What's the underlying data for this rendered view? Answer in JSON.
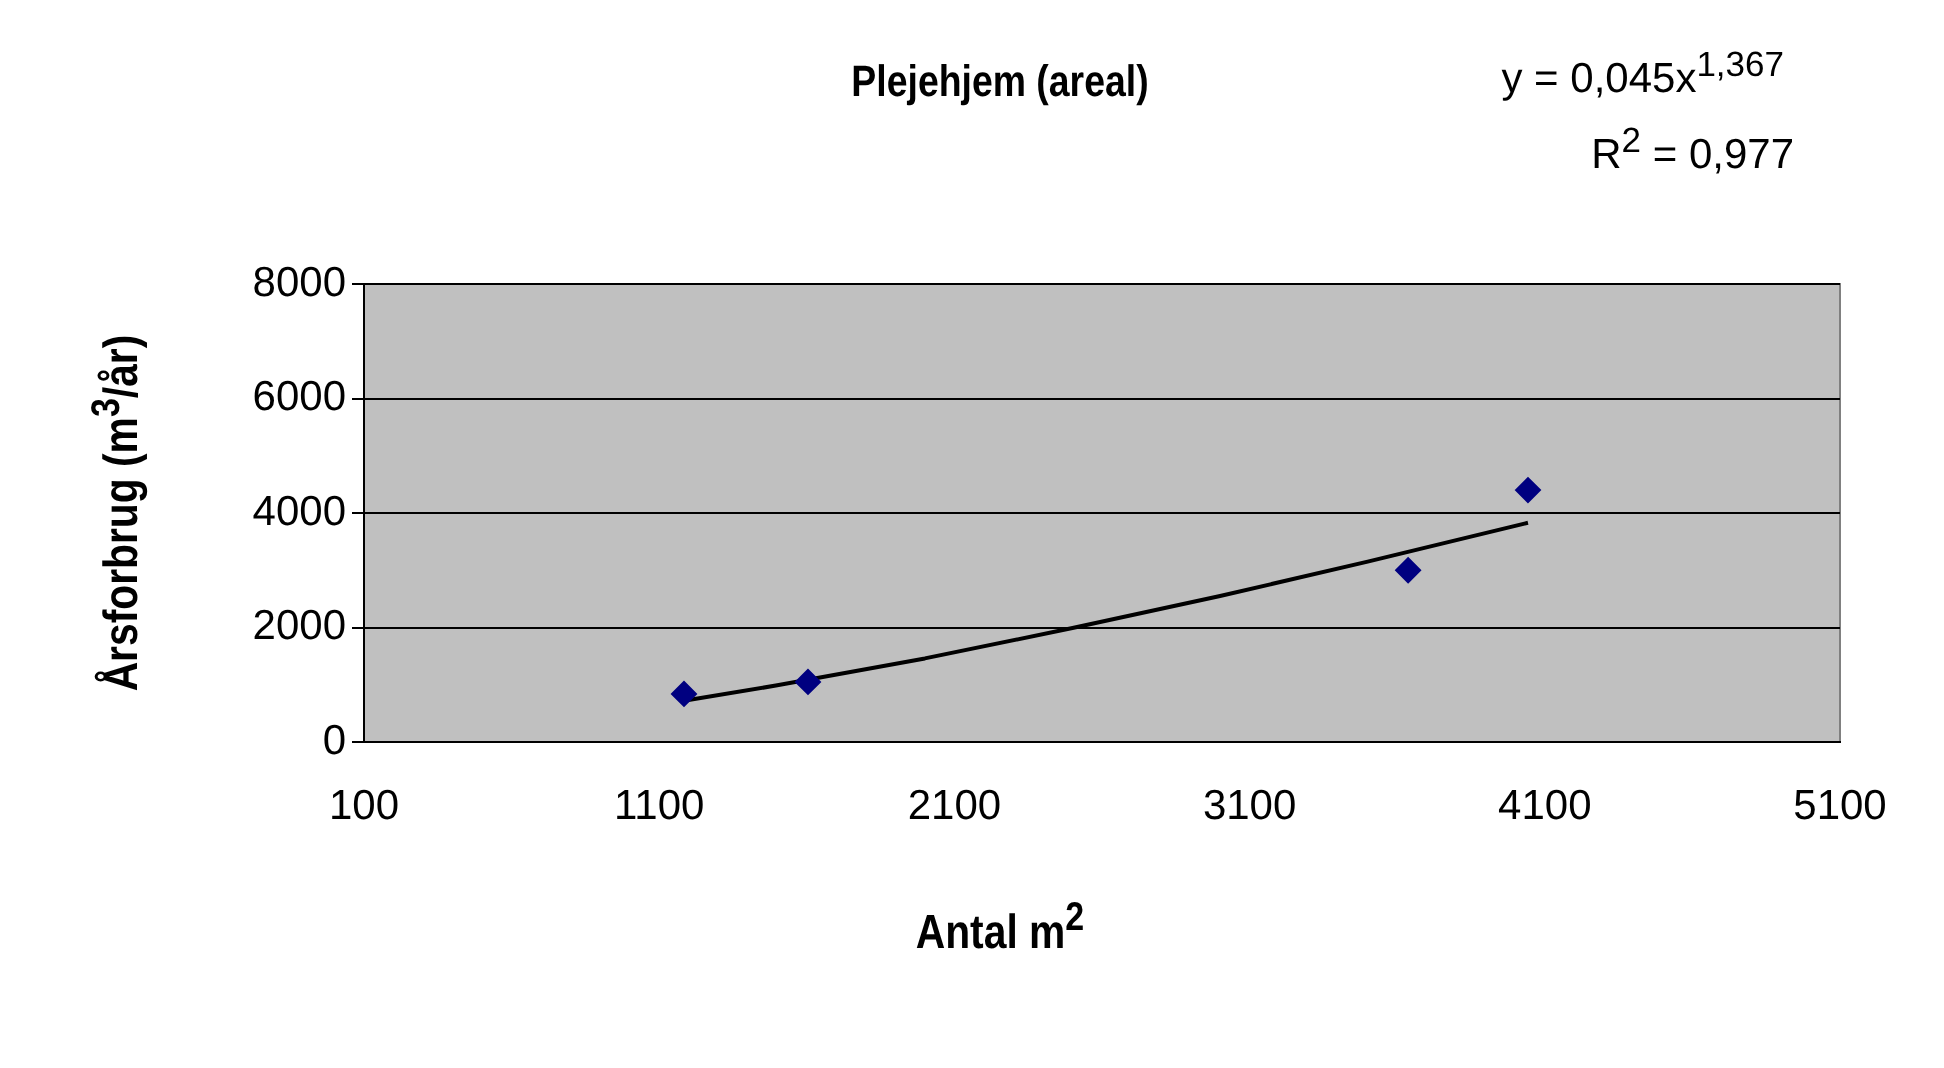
{
  "chart_data": {
    "type": "scatter",
    "title": "Plejehjem (areal)",
    "xlabel": "Antal m$^{2}$",
    "ylabel": "Årsforbrug (m$^{3}$/år)",
    "annotations": [
      "y = 0,045x$^{1,367}$",
      "R$^{2}$ = 0,977"
    ],
    "series": [
      {
        "type": "scatter",
        "color": "#000080",
        "x": [
          1184,
          1604,
          3637,
          4043
        ],
        "values": [
          840,
          1050,
          3000,
          4400
        ]
      },
      {
        "type": "line",
        "marker": "none",
        "color": "#000000",
        "x": [
          1184,
          1500,
          2000,
          2500,
          3000,
          3500,
          4043
        ],
        "values": [
          720,
          990,
          1460,
          1990,
          2550,
          3150,
          3830
        ]
      }
    ],
    "xlim": [
      100,
      5100
    ],
    "xticks": [
      100,
      1100,
      2100,
      3100,
      4100,
      5100
    ],
    "ylim": [
      0,
      8000
    ],
    "yticks": [
      0,
      2000,
      4000,
      6000,
      8000
    ],
    "grid": "y",
    "legend": false,
    "marker": "diamond",
    "line_style": "solid"
  }
}
